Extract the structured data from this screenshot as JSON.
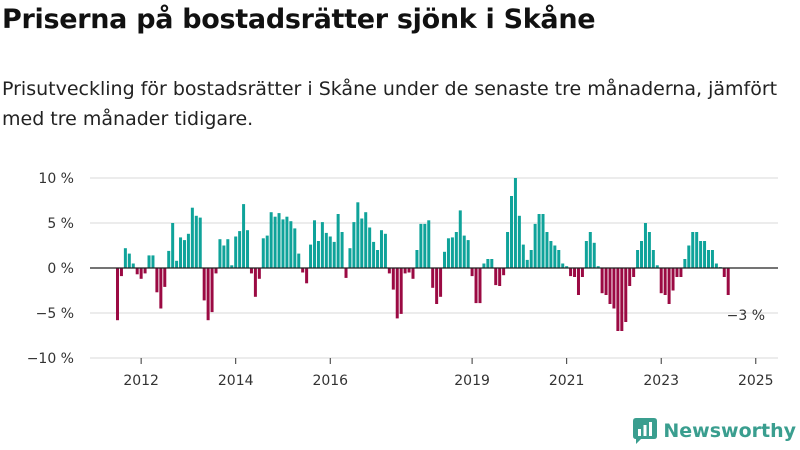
{
  "title": "Priserna på bostadsrätter sjönk i Skåne",
  "subtitle": "Prisutveckling för bostadsrätter i Skåne under de senaste tre månaderna, jämfört med tre månader tidigare.",
  "brand": {
    "name": "Newsworthy",
    "color": "#3a9e8f",
    "icon": "bar-chart-logo-icon"
  },
  "colors": {
    "positive": "#0fa39a",
    "negative": "#9b0a43",
    "grid": "#d9d9d9",
    "zero": "#222222"
  },
  "chart_data": {
    "type": "bar",
    "ylim": [
      -10,
      10
    ],
    "y_ticks": [
      {
        "value": 10,
        "label": "10 %"
      },
      {
        "value": 5,
        "label": "5 %"
      },
      {
        "value": 0,
        "label": "0 %"
      },
      {
        "value": -5,
        "label": "−5 %"
      },
      {
        "value": -10,
        "label": "−10 %"
      }
    ],
    "x_ticks": [
      {
        "index": 6,
        "label": "2012"
      },
      {
        "index": 30,
        "label": "2014"
      },
      {
        "index": 54,
        "label": "2016"
      },
      {
        "index": 90,
        "label": "2019"
      },
      {
        "index": 114,
        "label": "2021"
      },
      {
        "index": 138,
        "label": "2023"
      },
      {
        "index": 162,
        "label": "2025"
      }
    ],
    "values": [
      -5.8,
      -0.9,
      2.2,
      1.6,
      0.5,
      -0.7,
      -1.2,
      -0.6,
      1.4,
      1.4,
      -2.7,
      -4.5,
      -2.1,
      1.9,
      5.0,
      0.8,
      3.4,
      3.1,
      3.8,
      6.7,
      5.8,
      5.6,
      -3.6,
      -5.8,
      -4.9,
      -0.6,
      3.2,
      2.5,
      3.2,
      0.3,
      3.5,
      4.1,
      7.1,
      4.2,
      -0.6,
      -3.2,
      -1.2,
      3.3,
      3.6,
      6.2,
      5.7,
      6.1,
      5.4,
      5.7,
      5.2,
      4.4,
      1.6,
      -0.5,
      -1.7,
      2.6,
      5.3,
      3.0,
      5.1,
      3.9,
      3.5,
      2.9,
      6.0,
      4.0,
      -1.1,
      2.2,
      5.1,
      7.3,
      5.5,
      6.2,
      4.5,
      2.9,
      2.0,
      4.2,
      3.8,
      -0.6,
      -2.4,
      -5.6,
      -5.1,
      -0.6,
      -0.5,
      -1.2,
      2.0,
      4.9,
      4.9,
      5.3,
      -2.2,
      -4.0,
      -3.2,
      1.8,
      3.3,
      3.4,
      4.0,
      6.4,
      3.6,
      3.1,
      -0.9,
      -3.9,
      -3.9,
      0.5,
      1.0,
      1.0,
      -1.9,
      -2.0,
      -0.8,
      4.0,
      8.0,
      10.0,
      5.8,
      2.6,
      0.9,
      2.0,
      4.9,
      6.0,
      6.0,
      4.0,
      3.0,
      2.5,
      2.0,
      0.5,
      0.2,
      -0.9,
      -1.0,
      -3.0,
      -1.0,
      3.0,
      4.0,
      2.8,
      0.2,
      -2.8,
      -3.0,
      -4.0,
      -4.5,
      -7.0,
      -7.0,
      -6.0,
      -2.0,
      -1.0,
      2.0,
      3.0,
      5.0,
      4.0,
      2.0,
      0.3,
      -2.8,
      -3.0,
      -4.0,
      -2.5,
      -1.0,
      -1.0,
      1.0,
      2.5,
      4.0,
      4.0,
      3.0,
      3.0,
      2.0,
      2.0,
      0.5,
      0.1,
      -1.0,
      -3.0
    ],
    "annotations": [
      {
        "index": 161,
        "text": "−3 %"
      }
    ]
  }
}
